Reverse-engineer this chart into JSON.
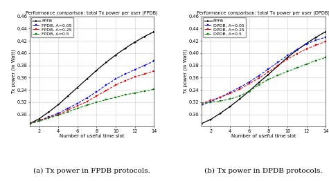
{
  "title_fpdb": "Performance comparison: total Tx power per user (FPDB)",
  "title_dpdb": "Performance comparison: total Tx power per user (DPDB)",
  "xlabel": "Number of useful time slot",
  "ylabel": "Tx power (in Watt)",
  "caption_a": "(a) Tx power in FPDB protocols.",
  "caption_b": "(b) Tx power in DPDB protocols.",
  "x": [
    1,
    2,
    3,
    4,
    5,
    6,
    7,
    8,
    9,
    10,
    11,
    12,
    13,
    14
  ],
  "fpdb": {
    "FPFB": [
      0.285,
      0.293,
      0.304,
      0.316,
      0.33,
      0.344,
      0.358,
      0.372,
      0.385,
      0.397,
      0.408,
      0.418,
      0.427,
      0.435
    ],
    "FPDB_005": [
      0.285,
      0.29,
      0.296,
      0.302,
      0.31,
      0.318,
      0.327,
      0.337,
      0.348,
      0.358,
      0.366,
      0.373,
      0.38,
      0.387
    ],
    "FPDB_025": [
      0.285,
      0.29,
      0.295,
      0.3,
      0.307,
      0.314,
      0.321,
      0.33,
      0.339,
      0.348,
      0.355,
      0.361,
      0.366,
      0.371
    ],
    "FPDB_05": [
      0.285,
      0.289,
      0.294,
      0.299,
      0.304,
      0.31,
      0.315,
      0.32,
      0.324,
      0.328,
      0.332,
      0.335,
      0.338,
      0.341
    ]
  },
  "dpdb": {
    "FPFB": [
      0.285,
      0.292,
      0.302,
      0.313,
      0.325,
      0.338,
      0.352,
      0.365,
      0.379,
      0.393,
      0.405,
      0.416,
      0.426,
      0.435
    ],
    "DPDB_005": [
      0.315,
      0.321,
      0.328,
      0.336,
      0.344,
      0.353,
      0.363,
      0.374,
      0.385,
      0.396,
      0.406,
      0.415,
      0.421,
      0.426
    ],
    "DPDB_025": [
      0.318,
      0.323,
      0.328,
      0.334,
      0.341,
      0.35,
      0.359,
      0.369,
      0.38,
      0.39,
      0.399,
      0.407,
      0.413,
      0.419
    ],
    "DPDB_05": [
      0.318,
      0.32,
      0.322,
      0.325,
      0.33,
      0.338,
      0.348,
      0.357,
      0.364,
      0.37,
      0.376,
      0.382,
      0.388,
      0.393
    ]
  },
  "colors": {
    "black": "#000000",
    "blue": "#0000dd",
    "red": "#dd0000",
    "green": "#007700"
  },
  "legend_fpdb": [
    "FPFB",
    "FPDB, A=0.05",
    "FPDB, A=0.25",
    "FPDB, A=0.5"
  ],
  "legend_dpdb": [
    "FPFB",
    "DPDB, A=0.05",
    "DPDB, A=0.25",
    "DPDB, A=0.5"
  ],
  "ylim": [
    0.28,
    0.46
  ],
  "yticks": [
    0.3,
    0.32,
    0.34,
    0.36,
    0.38,
    0.4,
    0.42,
    0.44,
    0.46
  ],
  "xticks": [
    2,
    4,
    6,
    8,
    10,
    12,
    14
  ],
  "title_fontsize": 4.8,
  "label_fontsize": 5.0,
  "legend_fontsize": 4.5,
  "tick_fontsize": 4.8,
  "caption_fontsize": 7.5,
  "background_color": "#ffffff",
  "grid_color": "#cccccc"
}
